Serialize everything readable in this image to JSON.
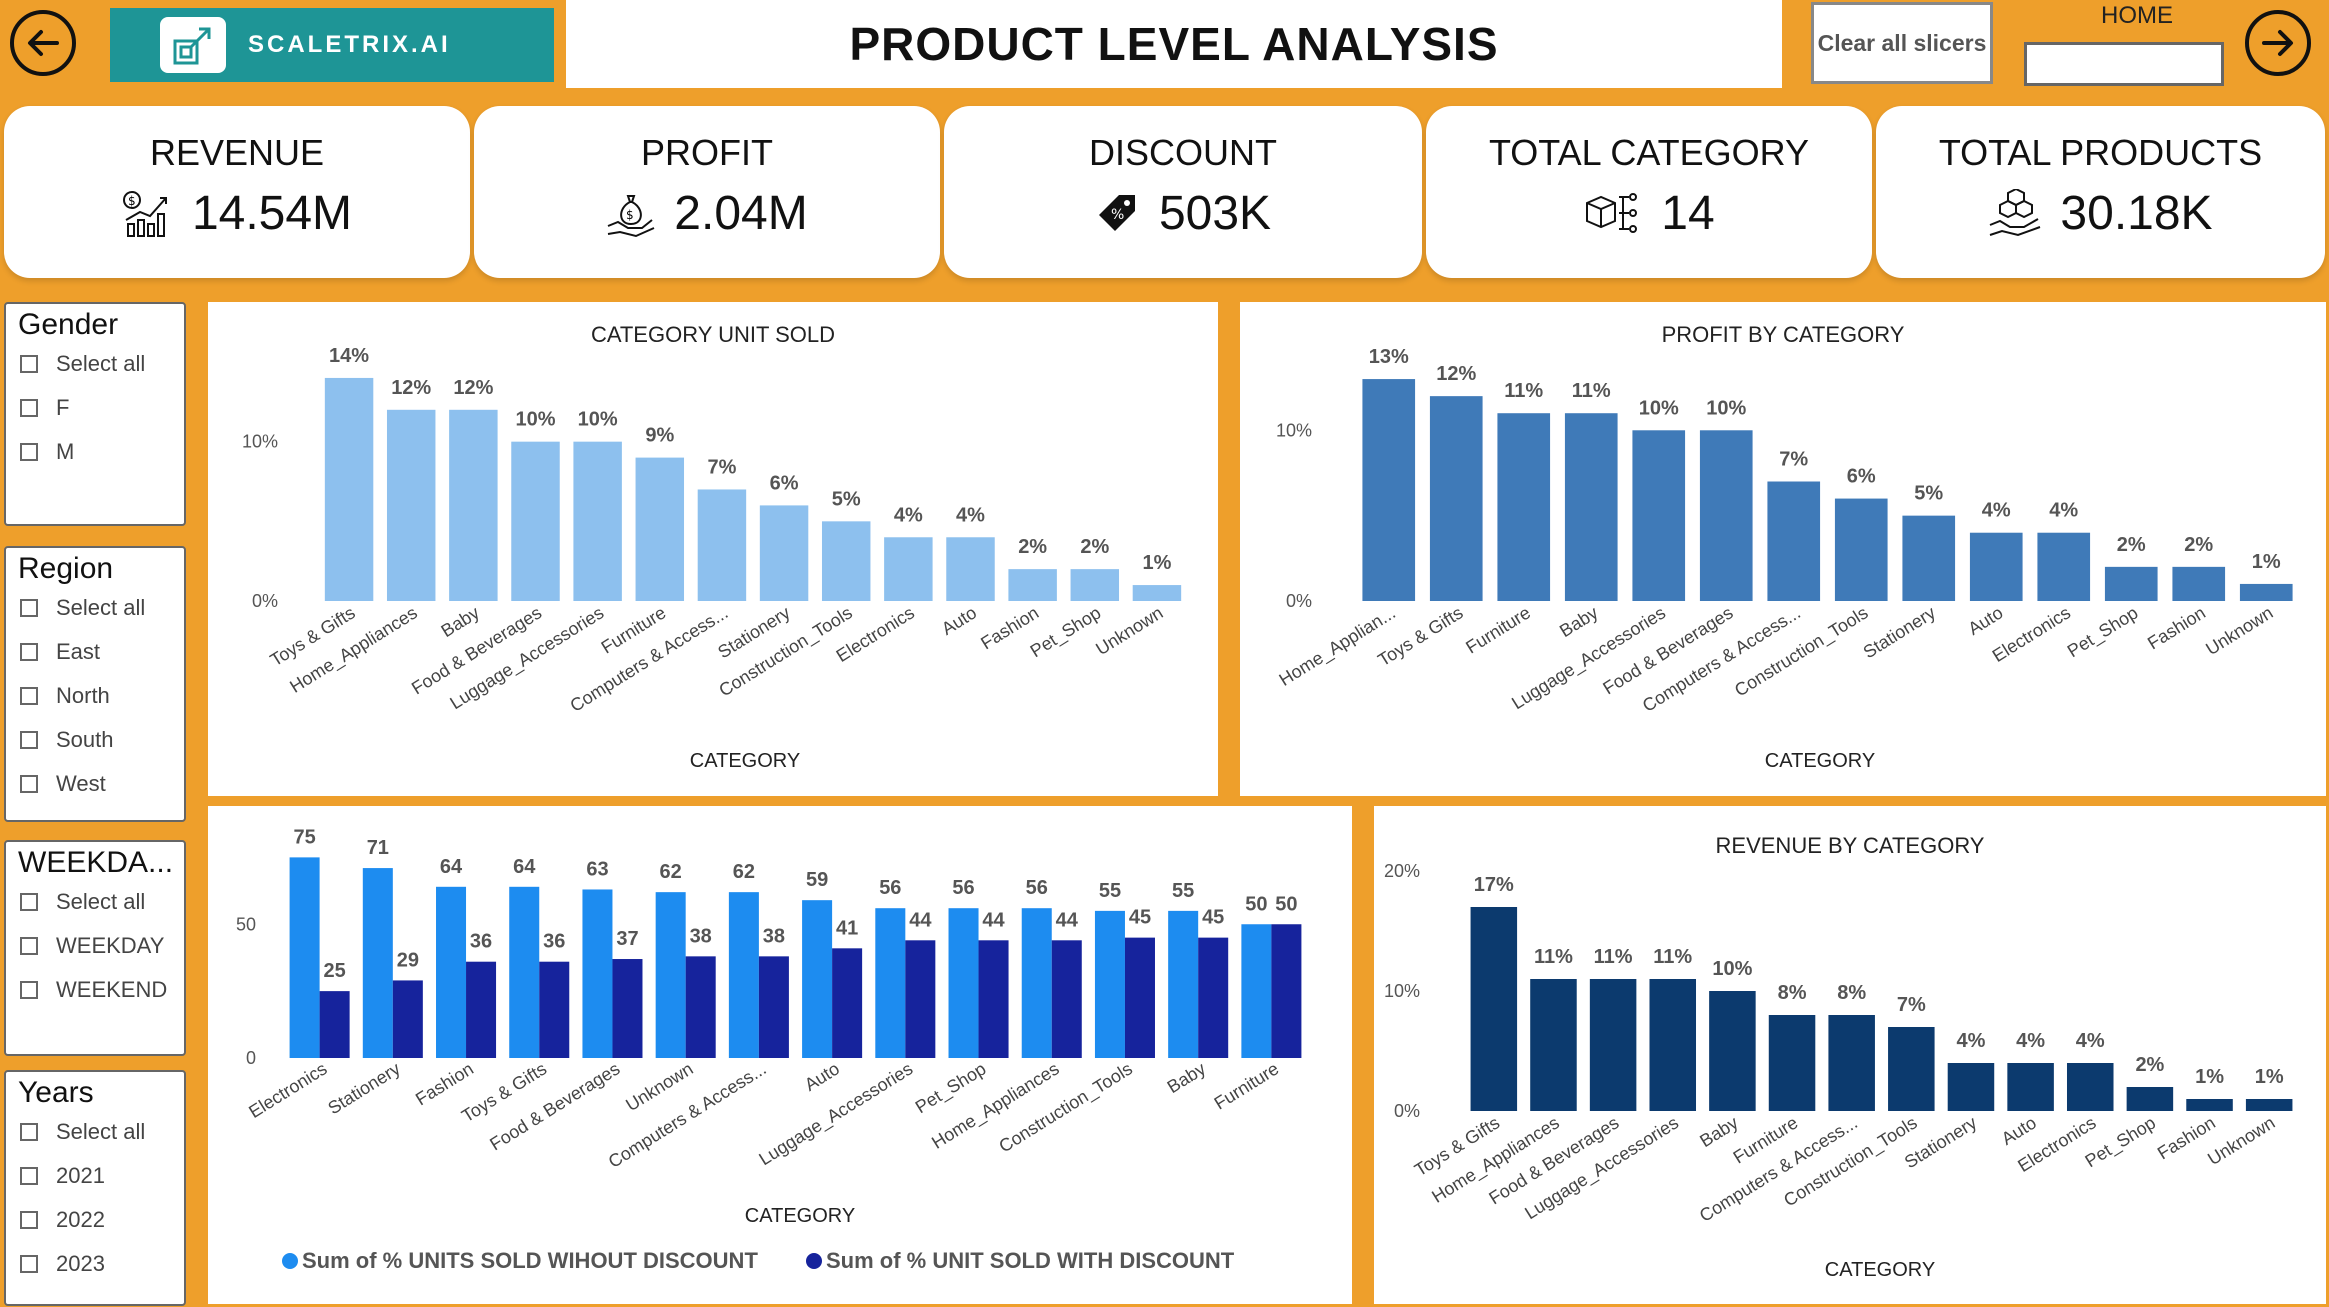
{
  "header": {
    "back_icon": "arrow-left-icon",
    "forward_icon": "arrow-right-icon",
    "brand": "SCALETRIX.AI",
    "title": "PRODUCT LEVEL ANALYSIS",
    "clear_label": "Clear all slicers",
    "home_label": "HOME",
    "home_value": ""
  },
  "kpis": [
    {
      "title": "REVENUE",
      "value": "14.54M",
      "icon": "revenue-chart-icon"
    },
    {
      "title": "PROFIT",
      "value": "2.04M",
      "icon": "money-bag-hand-icon"
    },
    {
      "title": "DISCOUNT",
      "value": "503K",
      "icon": "price-tag-icon"
    },
    {
      "title": "TOTAL CATEGORY",
      "value": "14",
      "icon": "box-hierarchy-icon"
    },
    {
      "title": "TOTAL PRODUCTS",
      "value": "30.18K",
      "icon": "boxes-hand-icon"
    }
  ],
  "slicers": {
    "gender": {
      "title": "Gender",
      "items": [
        "Select all",
        "F",
        "M"
      ]
    },
    "region": {
      "title": "Region",
      "items": [
        "Select all",
        "East",
        "North",
        "South",
        "West"
      ]
    },
    "weekday": {
      "title": "WEEKDA...",
      "items": [
        "Select all",
        "WEEKDAY",
        "WEEKEND"
      ]
    },
    "years": {
      "title": "Years",
      "items": [
        "Select all",
        "2021",
        "2022",
        "2023"
      ]
    }
  },
  "chart_data": [
    {
      "type": "bar",
      "title": "CATEGORY UNIT SOLD",
      "xlabel": "CATEGORY",
      "ylabel": "",
      "yticks": [
        "0%",
        "10%"
      ],
      "ylim": [
        0,
        15
      ],
      "color": "#8dc0ee",
      "categories": [
        "Toys & Gifts",
        "Home_Appliances",
        "Baby",
        "Food & Beverages",
        "Luggage_Accessories",
        "Furniture",
        "Computers & Access...",
        "Stationery",
        "Construction_Tools",
        "Electronics",
        "Auto",
        "Fashion",
        "Pet_Shop",
        "Unknown"
      ],
      "values": [
        14,
        12,
        12,
        10,
        10,
        9,
        7,
        6,
        5,
        4,
        4,
        2,
        2,
        1
      ],
      "labels": [
        "14%",
        "12%",
        "12%",
        "10%",
        "10%",
        "9%",
        "7%",
        "6%",
        "5%",
        "4%",
        "4%",
        "2%",
        "2%",
        "1%"
      ]
    },
    {
      "type": "bar",
      "title": "PROFIT BY CATEGORY",
      "xlabel": "CATEGORY",
      "ylabel": "",
      "yticks": [
        "0%",
        "10%"
      ],
      "ylim": [
        0,
        14
      ],
      "color": "#3f7ab8",
      "categories": [
        "Home_Applian...",
        "Toys & Gifts",
        "Furniture",
        "Baby",
        "Luggage_Accessories",
        "Food & Beverages",
        "Computers & Access...",
        "Construction_Tools",
        "Stationery",
        "Auto",
        "Electronics",
        "Pet_Shop",
        "Fashion",
        "Unknown"
      ],
      "values": [
        13,
        12,
        11,
        11,
        10,
        10,
        7,
        6,
        5,
        4,
        4,
        2,
        2,
        1
      ],
      "labels": [
        "13%",
        "12%",
        "11%",
        "11%",
        "10%",
        "10%",
        "7%",
        "6%",
        "5%",
        "4%",
        "4%",
        "2%",
        "2%",
        "1%"
      ]
    },
    {
      "type": "bar",
      "title": "",
      "xlabel": "CATEGORY",
      "ylabel": "",
      "yticks": [
        "0",
        "50"
      ],
      "ylim": [
        0,
        80
      ],
      "categories": [
        "Electronics",
        "Stationery",
        "Fashion",
        "Toys & Gifts",
        "Food & Beverages",
        "Unknown",
        "Computers & Access...",
        "Auto",
        "Luggage_Accessories",
        "Pet_Shop",
        "Home_Appliances",
        "Construction_Tools",
        "Baby",
        "Furniture"
      ],
      "series": [
        {
          "name": "Sum of % UNITS SOLD WIHOUT DISCOUNT",
          "color": "#1d8cf0",
          "values": [
            75,
            71,
            64,
            64,
            63,
            62,
            62,
            59,
            56,
            56,
            56,
            55,
            55,
            50
          ]
        },
        {
          "name": "Sum of % UNIT SOLD WITH DISCOUNT",
          "color": "#16239c",
          "values": [
            25,
            29,
            36,
            36,
            37,
            38,
            38,
            41,
            44,
            44,
            44,
            45,
            45,
            50
          ]
        }
      ]
    },
    {
      "type": "bar",
      "title": "REVENUE BY CATEGORY",
      "xlabel": "CATEGORY",
      "ylabel": "",
      "yticks": [
        "0%",
        "10%",
        "20%"
      ],
      "ylim": [
        0,
        20
      ],
      "color": "#0c3a6e",
      "categories": [
        "Toys & Gifts",
        "Home_Appliances",
        "Food & Beverages",
        "Luggage_Accessories",
        "Baby",
        "Furniture",
        "Computers & Access...",
        "Construction_Tools",
        "Stationery",
        "Auto",
        "Electronics",
        "Pet_Shop",
        "Fashion",
        "Unknown"
      ],
      "values": [
        17,
        11,
        11,
        11,
        10,
        8,
        8,
        7,
        4,
        4,
        4,
        2,
        1,
        1
      ],
      "labels": [
        "17%",
        "11%",
        "11%",
        "11%",
        "10%",
        "8%",
        "8%",
        "7%",
        "4%",
        "4%",
        "4%",
        "2%",
        "1%",
        "1%"
      ]
    }
  ]
}
